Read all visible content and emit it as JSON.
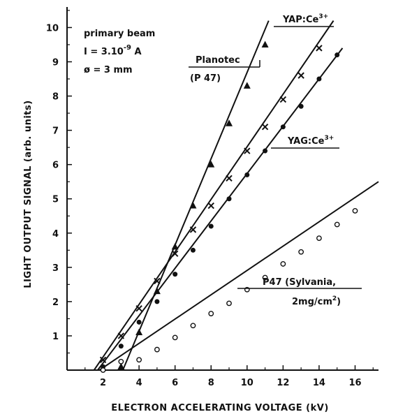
{
  "chart_data": {
    "type": "line",
    "xlabel": "ELECTRON ACCELERATING VOLTAGE (kV)",
    "ylabel": "LIGHT OUTPUT SIGNAL (arb. units)",
    "xlim": [
      0,
      17.3
    ],
    "ylim": [
      0,
      10.6
    ],
    "xticks": [
      2,
      4,
      6,
      8,
      10,
      12,
      14,
      16
    ],
    "yticks": [
      1,
      2,
      3,
      4,
      5,
      6,
      7,
      8,
      9,
      10
    ],
    "grid": false,
    "annotation": {
      "line1": "primary beam",
      "line2_prefix": "I = 3.10",
      "line2_exp": "-9",
      "line2_suffix": " A",
      "line3": "ø = 3 mm"
    },
    "series": [
      {
        "label_lines": [
          "Planotec",
          "(P 47)"
        ],
        "marker": "triangle",
        "line": {
          "x": [
            3.1,
            11.2
          ],
          "y": [
            0.0,
            10.2
          ]
        },
        "x": [
          3.0,
          4.0,
          5.0,
          6.0,
          7.0,
          8.0,
          9.0,
          10.0,
          11.0
        ],
        "y": [
          0.1,
          1.1,
          2.3,
          3.6,
          4.8,
          6.0,
          7.2,
          8.3,
          9.5
        ]
      },
      {
        "label_lines": [
          "YAP:Ce",
          "3+"
        ],
        "marker": "cross",
        "line": {
          "x": [
            1.5,
            14.8
          ],
          "y": [
            0.0,
            10.2
          ]
        },
        "x": [
          2.0,
          3.0,
          4.0,
          5.0,
          6.0,
          7.0,
          8.0,
          9.0,
          10.0,
          11.0,
          12.0,
          13.0,
          14.0
        ],
        "y": [
          0.3,
          1.0,
          1.8,
          2.6,
          3.4,
          4.1,
          4.8,
          5.6,
          6.4,
          7.1,
          7.9,
          8.6,
          9.4
        ]
      },
      {
        "label_lines": [
          "YAG:Ce",
          "3+"
        ],
        "marker": "filled-circle",
        "line": {
          "x": [
            1.7,
            15.3
          ],
          "y": [
            0.0,
            9.4
          ]
        },
        "x": [
          2.0,
          3.0,
          4.0,
          5.0,
          6.0,
          7.0,
          8.0,
          9.0,
          10.0,
          11.0,
          12.0,
          13.0,
          14.0,
          15.0
        ],
        "y": [
          0.1,
          0.7,
          1.4,
          2.0,
          2.8,
          3.5,
          4.2,
          5.0,
          5.7,
          6.4,
          7.1,
          7.7,
          8.5,
          9.2
        ]
      },
      {
        "label_lines": [
          "P47 (Sylvania,",
          "2mg/cm",
          "2",
          ")"
        ],
        "marker": "open-circle",
        "line": {
          "x": [
            1.8,
            17.3
          ],
          "y": [
            0.0,
            5.5
          ]
        },
        "x": [
          2.0,
          3.0,
          4.0,
          5.0,
          6.0,
          7.0,
          8.0,
          9.0,
          10.0,
          11.0,
          12.0,
          13.0,
          14.0,
          15.0,
          16.0
        ],
        "y": [
          0.0,
          0.25,
          0.3,
          0.6,
          0.95,
          1.3,
          1.65,
          1.95,
          2.35,
          2.7,
          3.1,
          3.45,
          3.85,
          4.25,
          4.65
        ]
      }
    ]
  }
}
